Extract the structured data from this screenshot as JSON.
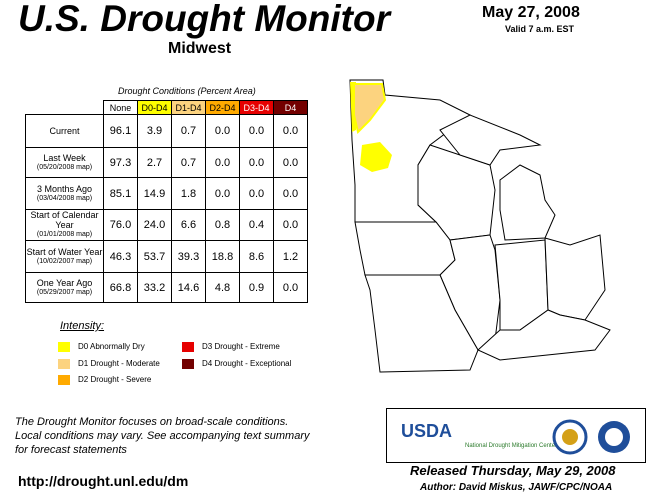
{
  "header": {
    "title": "U.S. Drought Monitor",
    "subtitle": "Midwest",
    "date": "May 27, 2008",
    "valid": "Valid 7 a.m. EST"
  },
  "table": {
    "caption": "Drought Conditions (Percent Area)",
    "columns": [
      "None",
      "D0-D4",
      "D1-D4",
      "D2-D4",
      "D3-D4",
      "D4"
    ],
    "rows": [
      {
        "label": "Current",
        "values": [
          "96.1",
          "3.9",
          "0.7",
          "0.0",
          "0.0",
          "0.0"
        ]
      },
      {
        "label": "Last Week",
        "date": "(05/20/2008 map)",
        "values": [
          "97.3",
          "2.7",
          "0.7",
          "0.0",
          "0.0",
          "0.0"
        ]
      },
      {
        "label": "3 Months Ago",
        "date": "(03/04/2008 map)",
        "values": [
          "85.1",
          "14.9",
          "1.8",
          "0.0",
          "0.0",
          "0.0"
        ]
      },
      {
        "label": "Start of Calendar Year",
        "date": "(01/01/2008 map)",
        "values": [
          "76.0",
          "24.0",
          "6.6",
          "0.8",
          "0.4",
          "0.0"
        ]
      },
      {
        "label": "Start of Water Year",
        "date": "(10/02/2007 map)",
        "values": [
          "46.3",
          "53.7",
          "39.3",
          "18.8",
          "8.6",
          "1.2"
        ]
      },
      {
        "label": "One Year Ago",
        "date": "(05/29/2007 map)",
        "values": [
          "66.8",
          "33.2",
          "14.6",
          "4.8",
          "0.9",
          "0.0"
        ]
      }
    ]
  },
  "legend": {
    "title": "Intensity:",
    "items": [
      {
        "label": "D0 Abnormally Dry",
        "color": "#ffff00"
      },
      {
        "label": "D1 Drought - Moderate",
        "color": "#fcd37f"
      },
      {
        "label": "D2 Drought - Severe",
        "color": "#ffaa00"
      },
      {
        "label": "D3 Drought - Extreme",
        "color": "#e60000"
      },
      {
        "label": "D4 Drought - Exceptional",
        "color": "#730000"
      }
    ]
  },
  "footer": {
    "note": [
      "The Drought Monitor focuses on broad-scale conditions.",
      "Local conditions may vary. See accompanying text summary",
      "for forecast statements"
    ],
    "url": "http://drought.unl.edu/dm",
    "released": "Released Thursday, May 29, 2008",
    "author": "Author: David Miskus, JAWF/CPC/NOAA"
  },
  "logos": {
    "usda": "USDA",
    "ndmc": "National Drought Mitigation Center"
  }
}
